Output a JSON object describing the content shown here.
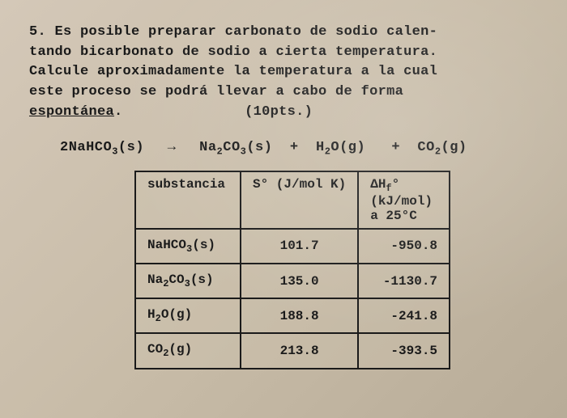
{
  "problem": {
    "number": "5.",
    "line1": "Es posible preparar carbonato de sodio calen-",
    "line2": "tando bicarbonato de sodio a cierta temperatura.",
    "line3": "Calcule aproximadamente la temperatura a la cual",
    "line4": "este proceso se podrá llevar a cabo de forma",
    "underlined": "espontánea",
    "period": ".",
    "points": "(10pts.)"
  },
  "equation": {
    "lhs": "2NaHCO₃(s)",
    "arrow": "→",
    "rhs1": "Na₂CO₃(s)",
    "plus1": "+",
    "rhs2": "H₂O(g)",
    "plus2": "+",
    "rhs3": "CO₂(g)"
  },
  "table": {
    "headers": {
      "col1": "substancia",
      "col2": "S° (J/mol K)",
      "col3_line1": "ΔH",
      "col3_sub": "f",
      "col3_sup": "°",
      "col3_line2": "(kJ/mol)",
      "col3_line3": "a 25°C"
    },
    "rows": [
      {
        "substance": "NaHCO₃(s)",
        "s": "101.7",
        "dh": "-950.8"
      },
      {
        "substance": "Na₂CO₃(s)",
        "s": "135.0",
        "dh": "-1130.7"
      },
      {
        "substance": "H₂O(g)",
        "s": "188.8",
        "dh": "-241.8"
      },
      {
        "substance": "CO₂(g)",
        "s": "213.8",
        "dh": "-393.5"
      }
    ]
  },
  "colors": {
    "text": "#1a1a1a",
    "border": "#1a1a1a",
    "bg_start": "#d4c8b8",
    "bg_end": "#b8ac98"
  }
}
